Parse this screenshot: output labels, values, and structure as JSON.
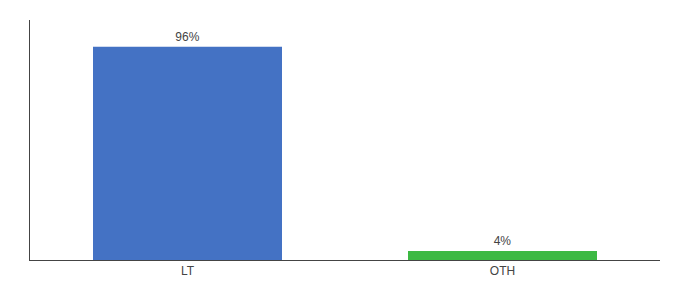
{
  "chart_data": {
    "type": "bar",
    "categories": [
      "LT",
      "OTH"
    ],
    "values": [
      96,
      4
    ],
    "value_labels": [
      "96%",
      "4%"
    ],
    "colors": [
      "#4472c4",
      "#3cb943"
    ],
    "ylim": [
      0,
      108
    ],
    "data_labels": true,
    "tick_labels": "x",
    "grid": false
  }
}
